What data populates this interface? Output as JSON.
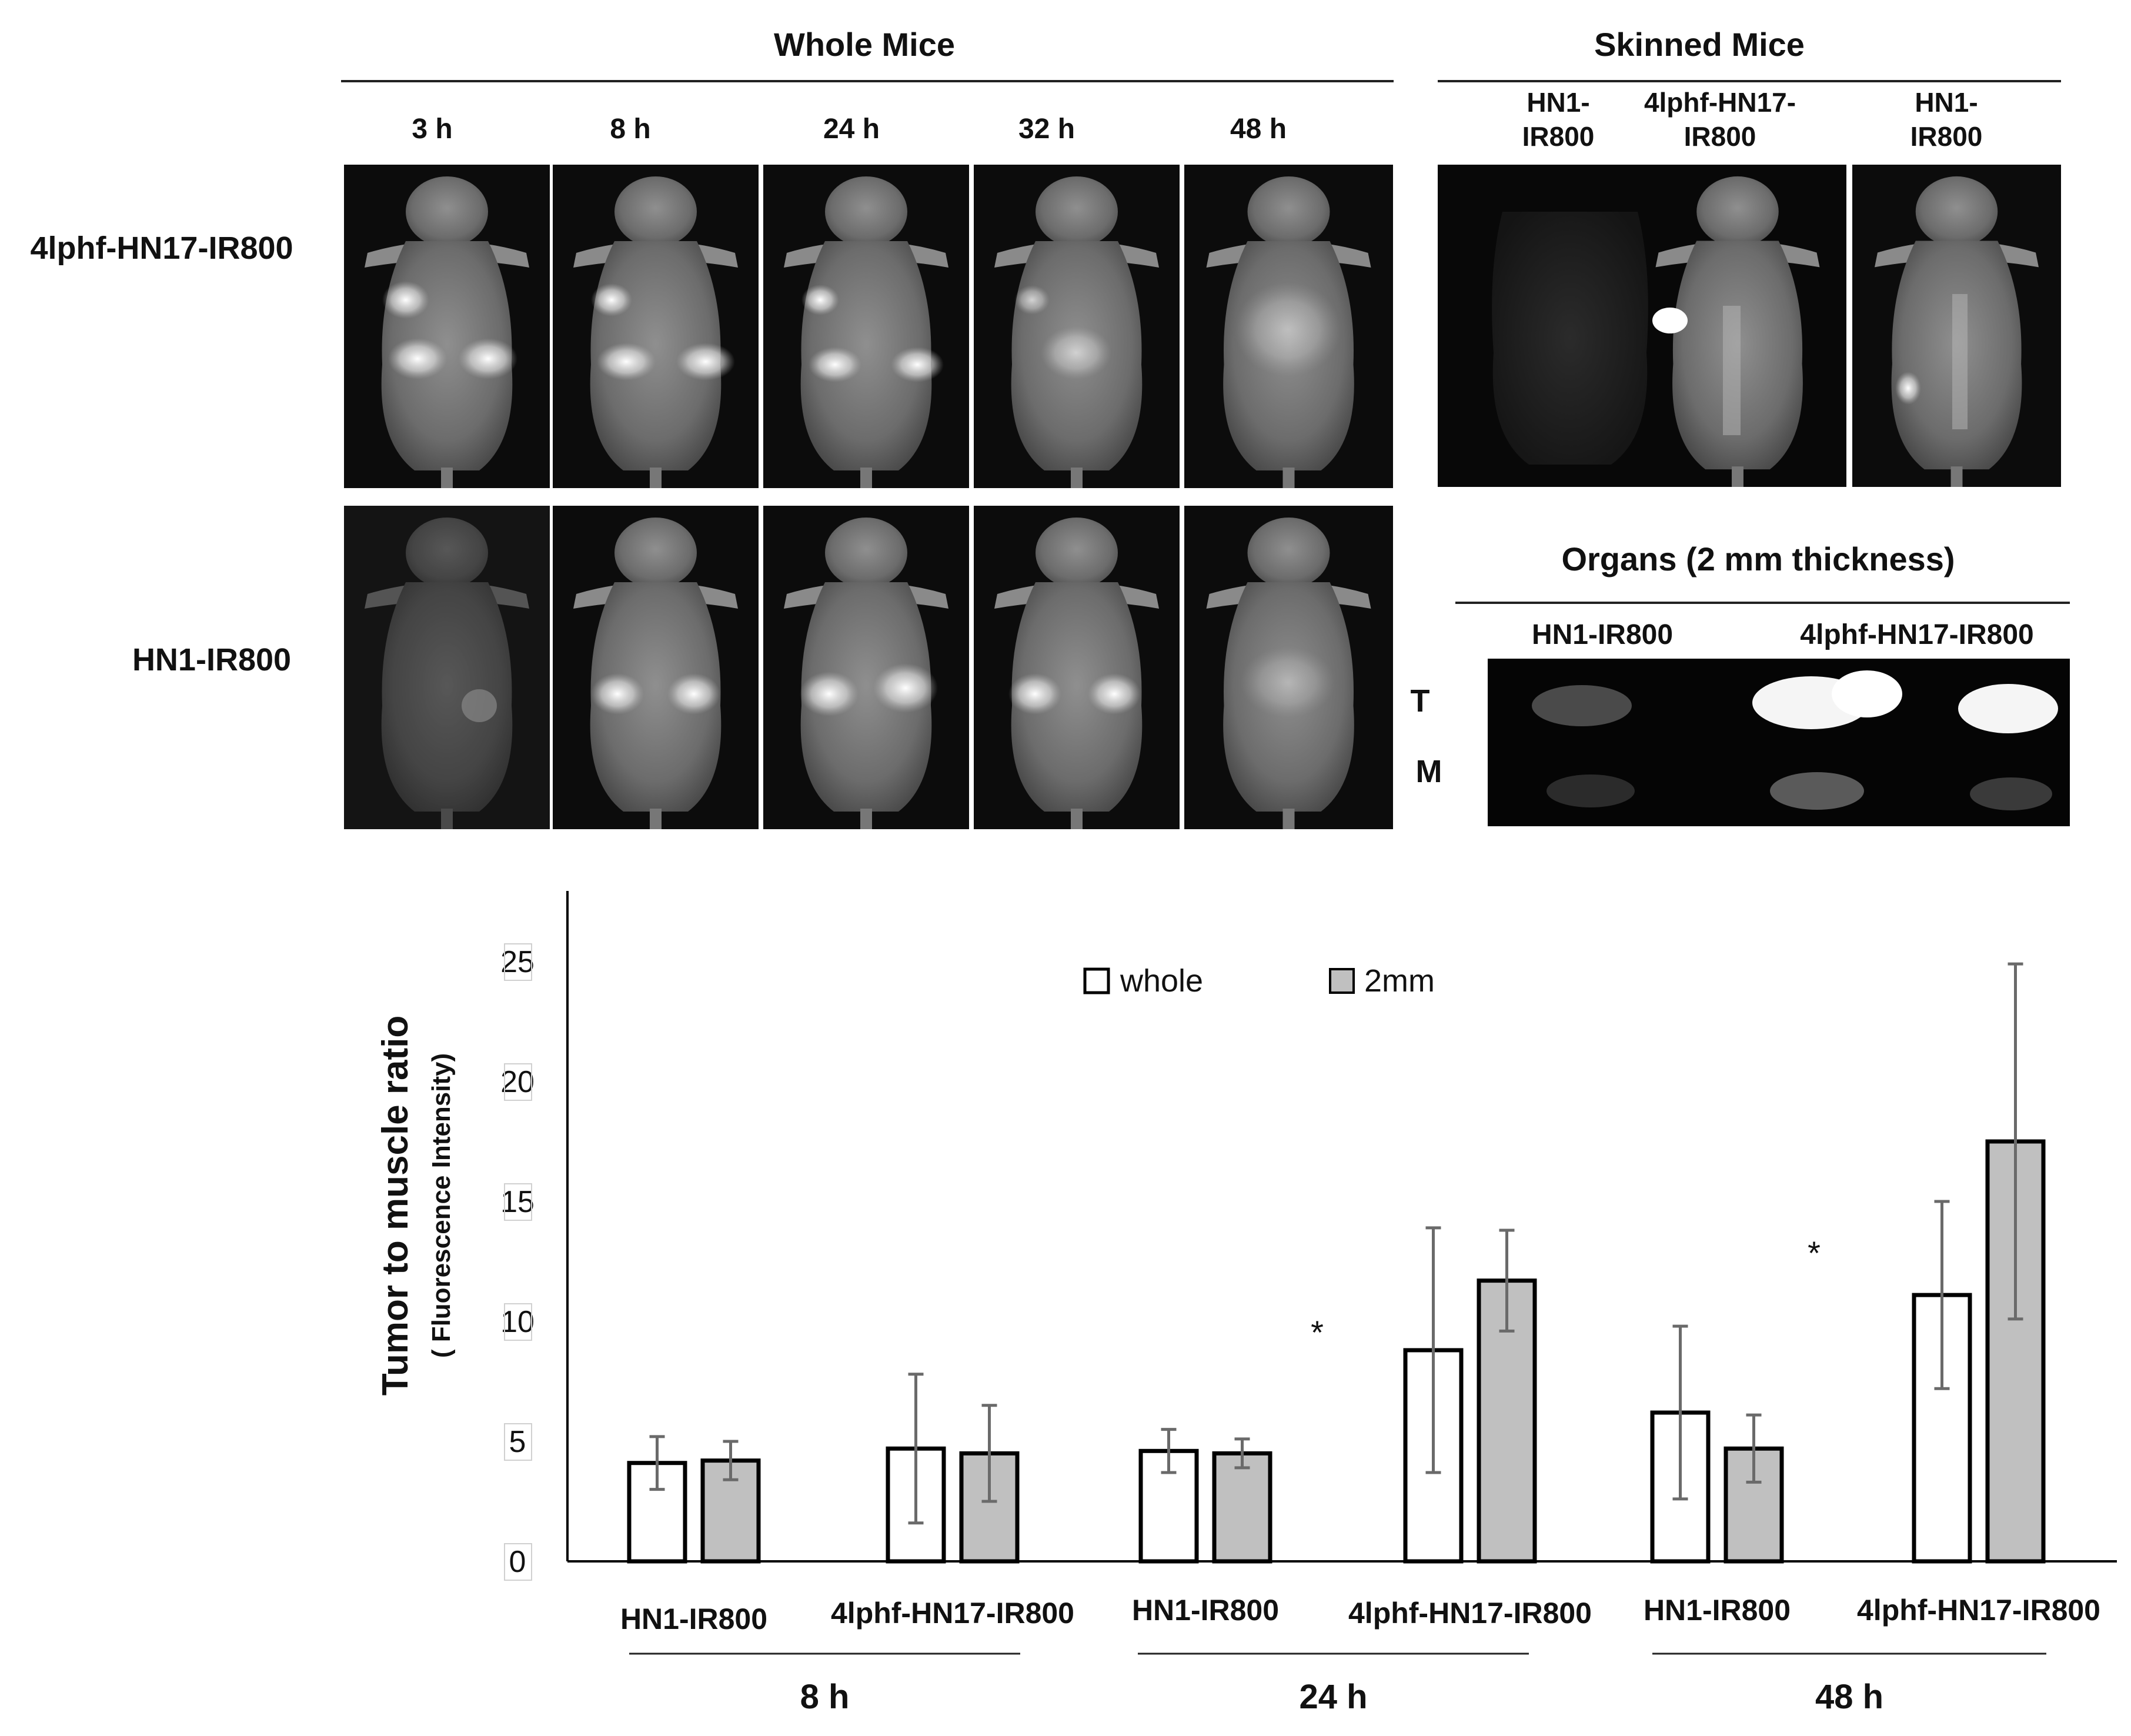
{
  "panel_top": {
    "whole_mice": {
      "title": "Whole Mice",
      "timepoints": [
        "3 h",
        "8 h",
        "24 h",
        "32 h",
        "48 h"
      ],
      "rows": [
        "4lphf-HN17-IR800",
        "HN1-IR800"
      ]
    },
    "skinned_mice": {
      "title": "Skinned Mice",
      "labels": [
        "HN1-\nIR800",
        "4lphf-HN17-\nIR800",
        "HN1-\nIR800"
      ]
    },
    "organs": {
      "title": "Organs (2 mm thickness)",
      "columns": [
        "HN1-IR800",
        "4lphf-HN17-IR800"
      ],
      "row_labels": [
        "T",
        "M"
      ]
    }
  },
  "chart_data": {
    "type": "bar",
    "ylabel": "Tumor to muscle ratio",
    "ylabel_sub": "( Fluorescence Intensity)",
    "ylim": [
      0,
      25
    ],
    "yticks": [
      "0",
      "5",
      "10",
      "15",
      "20",
      "25"
    ],
    "categories": [
      "HN1-IR800",
      "4lphf-HN17-IR800",
      "HN1-IR800",
      "4lphf-HN17-IR800",
      "HN1-IR800",
      "4lphf-HN17-IR800"
    ],
    "groups": [
      "8 h",
      "24 h",
      "48 h"
    ],
    "series": [
      {
        "name": "whole",
        "color": "#ffffff",
        "values": [
          4.1,
          4.7,
          4.6,
          8.8,
          6.2,
          11.1
        ],
        "errors": [
          1.1,
          3.1,
          0.9,
          5.1,
          3.6,
          3.9
        ]
      },
      {
        "name": "2mm",
        "color": "#c0c0c0",
        "values": [
          4.2,
          4.5,
          4.5,
          11.7,
          4.7,
          17.5
        ],
        "errors": [
          0.8,
          2.0,
          0.6,
          2.1,
          1.4,
          7.4
        ]
      }
    ],
    "annotations": [
      "*",
      "*"
    ],
    "legend_position": "top-center"
  }
}
